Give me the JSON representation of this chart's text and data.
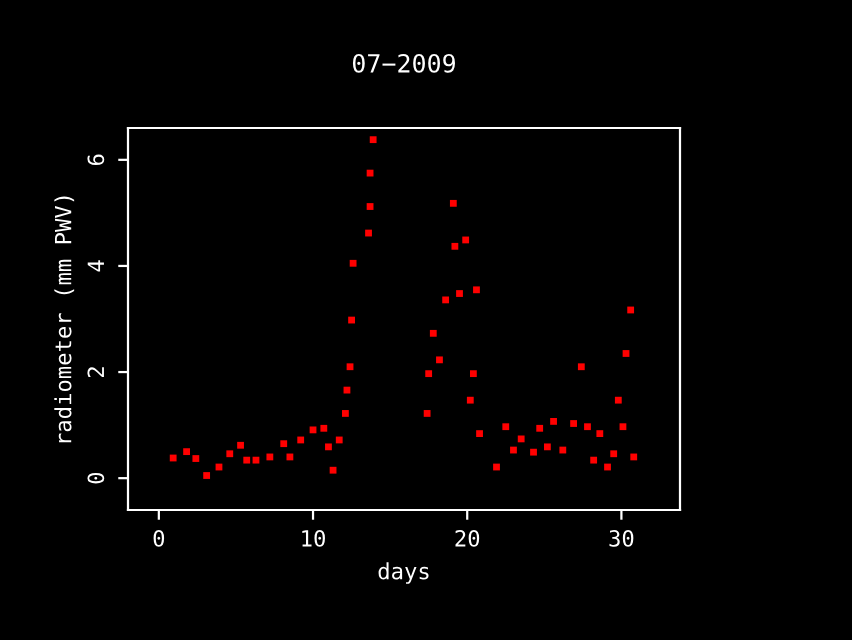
{
  "chart_data": {
    "type": "scatter",
    "title": "07−2009",
    "xlabel": "days",
    "ylabel": "radiometer (mm PWV)",
    "xlim": [
      -2.0,
      33.8
    ],
    "ylim": [
      -0.6,
      6.6
    ],
    "xticks": [
      0,
      10,
      20,
      30
    ],
    "yticks": [
      0,
      2,
      4,
      6
    ],
    "grid": false,
    "marker": "square",
    "series": [
      {
        "color": "#ff0000",
        "x": [
          0.93,
          1.8,
          2.4,
          3.1,
          3.9,
          4.6,
          5.3,
          5.7,
          6.3,
          7.2,
          8.1,
          8.5,
          9.2,
          10.0,
          10.7,
          11.0,
          11.3,
          11.7,
          12.1,
          12.2,
          12.4,
          12.5,
          12.6,
          13.6,
          13.7,
          13.7,
          13.9,
          17.4,
          17.5,
          17.8,
          18.2,
          18.6,
          19.1,
          19.2,
          19.5,
          19.9,
          20.2,
          20.4,
          20.6,
          20.8,
          21.9,
          22.5,
          23.0,
          23.5,
          24.3,
          24.7,
          25.2,
          25.6,
          26.2,
          26.9,
          27.4,
          27.8,
          28.2,
          28.6,
          29.1,
          29.5,
          29.8,
          30.1,
          30.3,
          30.6,
          30.8
        ],
        "values": [
          0.38,
          0.5,
          0.37,
          0.05,
          0.21,
          0.46,
          0.62,
          0.34,
          0.34,
          0.4,
          0.65,
          0.4,
          0.72,
          0.91,
          0.94,
          0.59,
          0.15,
          0.72,
          1.22,
          1.66,
          2.1,
          2.98,
          4.05,
          4.62,
          5.12,
          5.75,
          6.38,
          1.22,
          1.97,
          2.73,
          2.23,
          3.36,
          5.18,
          4.37,
          3.48,
          4.49,
          1.47,
          1.97,
          3.55,
          0.84,
          0.21,
          0.97,
          0.53,
          0.74,
          0.49,
          0.94,
          0.59,
          1.07,
          0.53,
          1.03,
          2.1,
          0.97,
          0.34,
          0.84,
          0.21,
          0.46,
          1.47,
          0.97,
          2.35,
          3.17,
          0.4
        ]
      }
    ]
  }
}
